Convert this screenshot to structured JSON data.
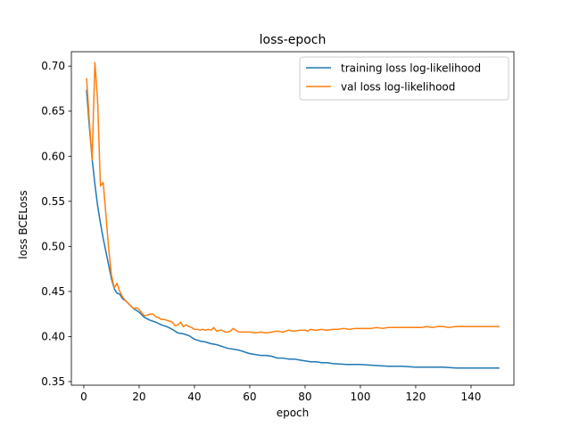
{
  "chart_data": {
    "type": "line",
    "title": "loss-epoch",
    "xlabel": "epoch",
    "ylabel": "loss BCELoss",
    "xlim": [
      -4.5,
      155.5
    ],
    "ylim": [
      0.346,
      0.716
    ],
    "xticks": [
      0,
      20,
      40,
      60,
      80,
      100,
      120,
      140
    ],
    "yticks": [
      0.35,
      0.4,
      0.45,
      0.5,
      0.55,
      0.6,
      0.65,
      0.7
    ],
    "grid": false,
    "legend_position": "top-right",
    "series": [
      {
        "name": "training loss log-likelihood",
        "color": "#1f77b4",
        "points": [
          [
            1,
            0.673
          ],
          [
            2,
            0.633
          ],
          [
            3,
            0.597
          ],
          [
            4,
            0.569
          ],
          [
            5,
            0.545
          ],
          [
            6,
            0.526
          ],
          [
            7,
            0.509
          ],
          [
            8,
            0.494
          ],
          [
            9,
            0.479
          ],
          [
            10,
            0.464
          ],
          [
            11,
            0.453
          ],
          [
            12,
            0.448
          ],
          [
            13,
            0.447
          ],
          [
            14,
            0.442
          ],
          [
            15,
            0.44
          ],
          [
            16,
            0.437
          ],
          [
            17,
            0.434
          ],
          [
            18,
            0.431
          ],
          [
            19,
            0.429
          ],
          [
            20,
            0.427
          ],
          [
            22,
            0.421
          ],
          [
            24,
            0.418
          ],
          [
            26,
            0.416
          ],
          [
            28,
            0.413
          ],
          [
            30,
            0.411
          ],
          [
            32,
            0.408
          ],
          [
            34,
            0.404
          ],
          [
            36,
            0.403
          ],
          [
            38,
            0.401
          ],
          [
            40,
            0.397
          ],
          [
            42,
            0.395
          ],
          [
            44,
            0.394
          ],
          [
            46,
            0.392
          ],
          [
            48,
            0.391
          ],
          [
            50,
            0.389
          ],
          [
            52,
            0.387
          ],
          [
            54,
            0.386
          ],
          [
            56,
            0.385
          ],
          [
            58,
            0.383
          ],
          [
            60,
            0.381
          ],
          [
            62,
            0.38
          ],
          [
            64,
            0.379
          ],
          [
            66,
            0.379
          ],
          [
            68,
            0.378
          ],
          [
            70,
            0.376
          ],
          [
            72,
            0.376
          ],
          [
            74,
            0.375
          ],
          [
            76,
            0.375
          ],
          [
            78,
            0.374
          ],
          [
            80,
            0.373
          ],
          [
            82,
            0.372
          ],
          [
            84,
            0.372
          ],
          [
            86,
            0.371
          ],
          [
            88,
            0.371
          ],
          [
            90,
            0.37
          ],
          [
            95,
            0.369
          ],
          [
            100,
            0.369
          ],
          [
            105,
            0.368
          ],
          [
            110,
            0.367
          ],
          [
            115,
            0.367
          ],
          [
            120,
            0.366
          ],
          [
            125,
            0.366
          ],
          [
            130,
            0.366
          ],
          [
            135,
            0.365
          ],
          [
            140,
            0.365
          ],
          [
            145,
            0.365
          ],
          [
            150,
            0.365
          ]
        ]
      },
      {
        "name": "val loss log-likelihood",
        "color": "#ff7f0e",
        "points": [
          [
            1,
            0.686
          ],
          [
            2,
            0.64
          ],
          [
            3,
            0.596
          ],
          [
            4,
            0.704
          ],
          [
            5,
            0.661
          ],
          [
            6,
            0.567
          ],
          [
            7,
            0.571
          ],
          [
            8,
            0.535
          ],
          [
            9,
            0.497
          ],
          [
            10,
            0.468
          ],
          [
            11,
            0.454
          ],
          [
            12,
            0.459
          ],
          [
            13,
            0.45
          ],
          [
            14,
            0.444
          ],
          [
            15,
            0.44
          ],
          [
            16,
            0.437
          ],
          [
            17,
            0.434
          ],
          [
            18,
            0.431
          ],
          [
            19,
            0.432
          ],
          [
            20,
            0.43
          ],
          [
            21,
            0.426
          ],
          [
            22,
            0.423
          ],
          [
            23,
            0.424
          ],
          [
            24,
            0.425
          ],
          [
            25,
            0.425
          ],
          [
            26,
            0.422
          ],
          [
            27,
            0.421
          ],
          [
            28,
            0.419
          ],
          [
            29,
            0.419
          ],
          [
            30,
            0.418
          ],
          [
            31,
            0.417
          ],
          [
            32,
            0.416
          ],
          [
            33,
            0.412
          ],
          [
            34,
            0.413
          ],
          [
            35,
            0.416
          ],
          [
            36,
            0.411
          ],
          [
            37,
            0.413
          ],
          [
            38,
            0.411
          ],
          [
            39,
            0.41
          ],
          [
            40,
            0.408
          ],
          [
            41,
            0.408
          ],
          [
            42,
            0.407
          ],
          [
            43,
            0.408
          ],
          [
            44,
            0.407
          ],
          [
            45,
            0.408
          ],
          [
            46,
            0.407
          ],
          [
            47,
            0.41
          ],
          [
            48,
            0.406
          ],
          [
            49,
            0.407
          ],
          [
            50,
            0.407
          ],
          [
            51,
            0.405
          ],
          [
            52,
            0.405
          ],
          [
            53,
            0.406
          ],
          [
            54,
            0.409
          ],
          [
            55,
            0.407
          ],
          [
            56,
            0.405
          ],
          [
            57,
            0.405
          ],
          [
            58,
            0.405
          ],
          [
            59,
            0.405
          ],
          [
            60,
            0.405
          ],
          [
            62,
            0.404
          ],
          [
            64,
            0.405
          ],
          [
            66,
            0.404
          ],
          [
            68,
            0.405
          ],
          [
            70,
            0.406
          ],
          [
            72,
            0.405
          ],
          [
            74,
            0.407
          ],
          [
            76,
            0.406
          ],
          [
            78,
            0.407
          ],
          [
            80,
            0.407
          ],
          [
            81,
            0.406
          ],
          [
            82,
            0.408
          ],
          [
            84,
            0.407
          ],
          [
            86,
            0.408
          ],
          [
            88,
            0.407
          ],
          [
            90,
            0.408
          ],
          [
            92,
            0.408
          ],
          [
            94,
            0.409
          ],
          [
            96,
            0.408
          ],
          [
            98,
            0.409
          ],
          [
            100,
            0.409
          ],
          [
            102,
            0.409
          ],
          [
            104,
            0.409
          ],
          [
            106,
            0.41
          ],
          [
            108,
            0.409
          ],
          [
            110,
            0.41
          ],
          [
            112,
            0.41
          ],
          [
            114,
            0.41
          ],
          [
            116,
            0.41
          ],
          [
            118,
            0.41
          ],
          [
            120,
            0.41
          ],
          [
            122,
            0.41
          ],
          [
            124,
            0.411
          ],
          [
            126,
            0.41
          ],
          [
            128,
            0.411
          ],
          [
            130,
            0.411
          ],
          [
            132,
            0.41
          ],
          [
            134,
            0.411
          ],
          [
            136,
            0.411
          ],
          [
            138,
            0.411
          ],
          [
            140,
            0.411
          ],
          [
            142,
            0.411
          ],
          [
            144,
            0.411
          ],
          [
            146,
            0.411
          ],
          [
            148,
            0.411
          ],
          [
            150,
            0.411
          ]
        ]
      }
    ]
  }
}
